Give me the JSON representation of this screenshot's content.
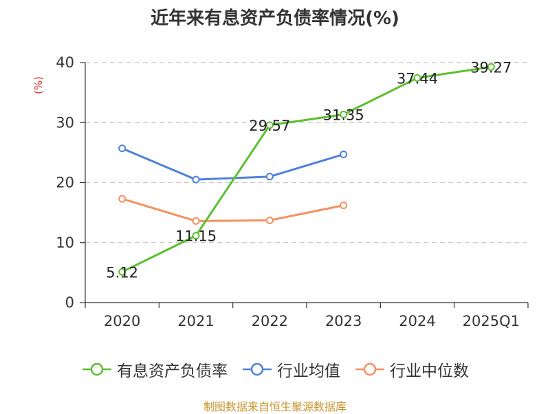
{
  "chart_data": {
    "type": "line",
    "title": "近年来有息资产负债率情况(%)",
    "ylabel": "(%)",
    "categories": [
      "2020",
      "2021",
      "2022",
      "2023",
      "2024",
      "2025Q1"
    ],
    "ylim": [
      0,
      40
    ],
    "yticks": [
      0,
      10,
      20,
      30,
      40
    ],
    "grid": true,
    "legend_position": "bottom",
    "series": [
      {
        "name": "有息资产负债率",
        "color": "#5cbf2f",
        "values": [
          5.12,
          11.15,
          29.57,
          31.35,
          37.44,
          39.27
        ],
        "labels": [
          "5.12",
          "11.15",
          "29.57",
          "31.35",
          "37.44",
          "39.27"
        ]
      },
      {
        "name": "行业均值",
        "color": "#4f81d9",
        "values": [
          25.7,
          20.5,
          21.0,
          24.7,
          null,
          null
        ]
      },
      {
        "name": "行业中位数",
        "color": "#f59060",
        "values": [
          17.3,
          13.6,
          13.7,
          16.2,
          null,
          null
        ]
      }
    ]
  },
  "footer": {
    "source": "制图数据来自恒生聚源数据库"
  }
}
